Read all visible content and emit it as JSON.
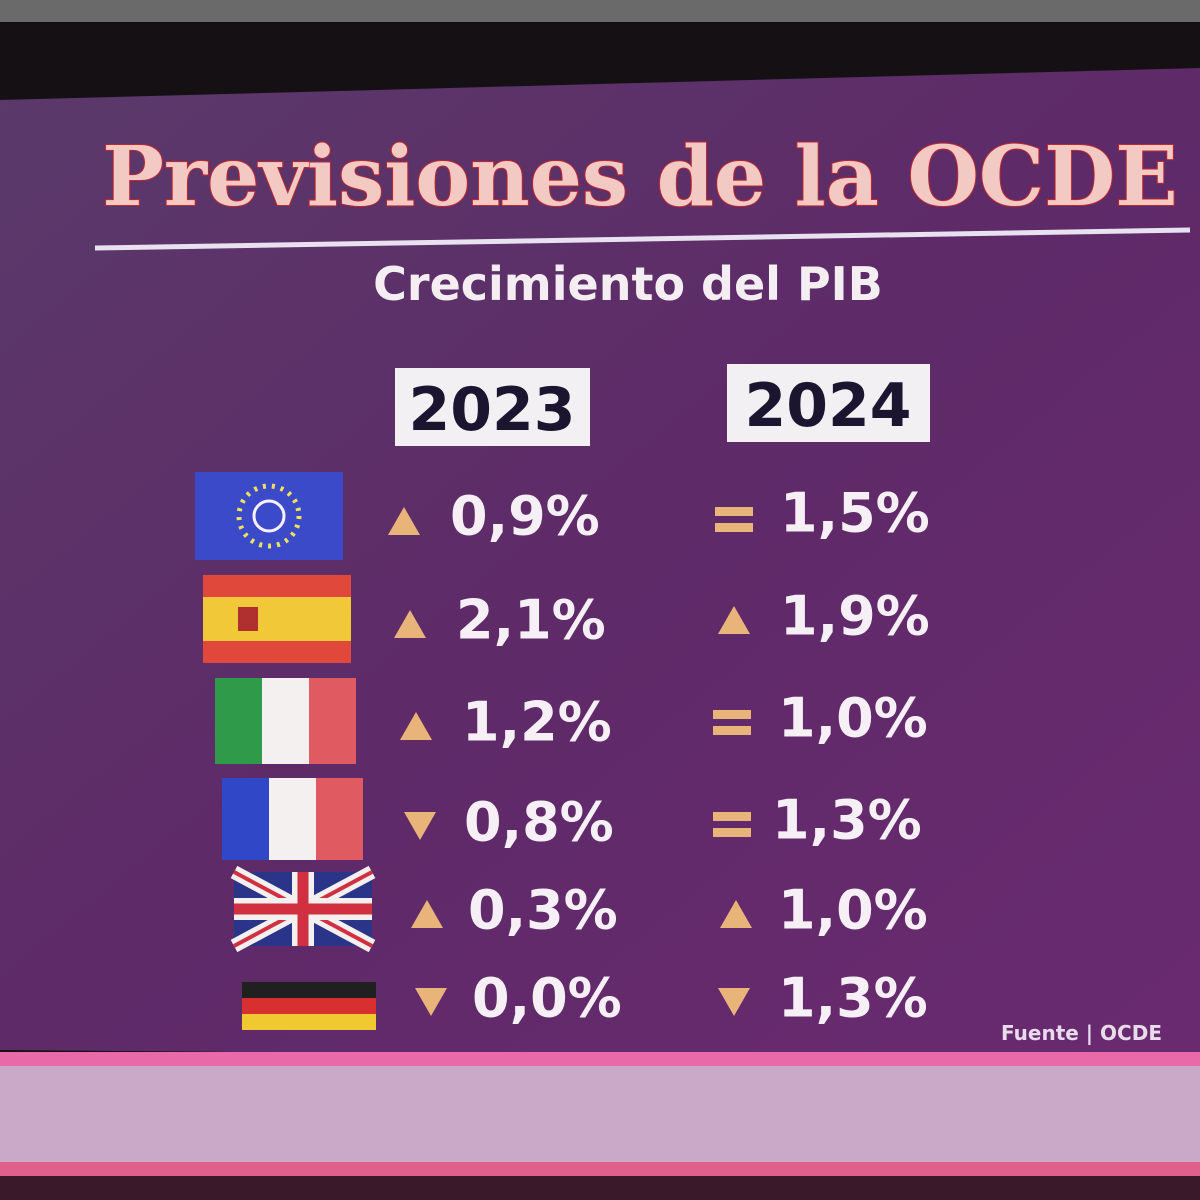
{
  "header": {
    "title": "Previsiones de la OCDE",
    "subtitle": "Crecimiento del PIB"
  },
  "table": {
    "columns": [
      "2023",
      "2024"
    ],
    "rows": [
      [
        "0,9%",
        "1,5%"
      ],
      [
        "2,1%",
        "1,9%"
      ],
      [
        "1,2%",
        "1,0%"
      ],
      [
        "0,8%",
        "1,3%"
      ],
      [
        "0,3%",
        "1,0%"
      ],
      [
        "0,0%",
        "1,3%"
      ]
    ]
  },
  "footer": {
    "source": "Fuente | OCDE"
  }
}
